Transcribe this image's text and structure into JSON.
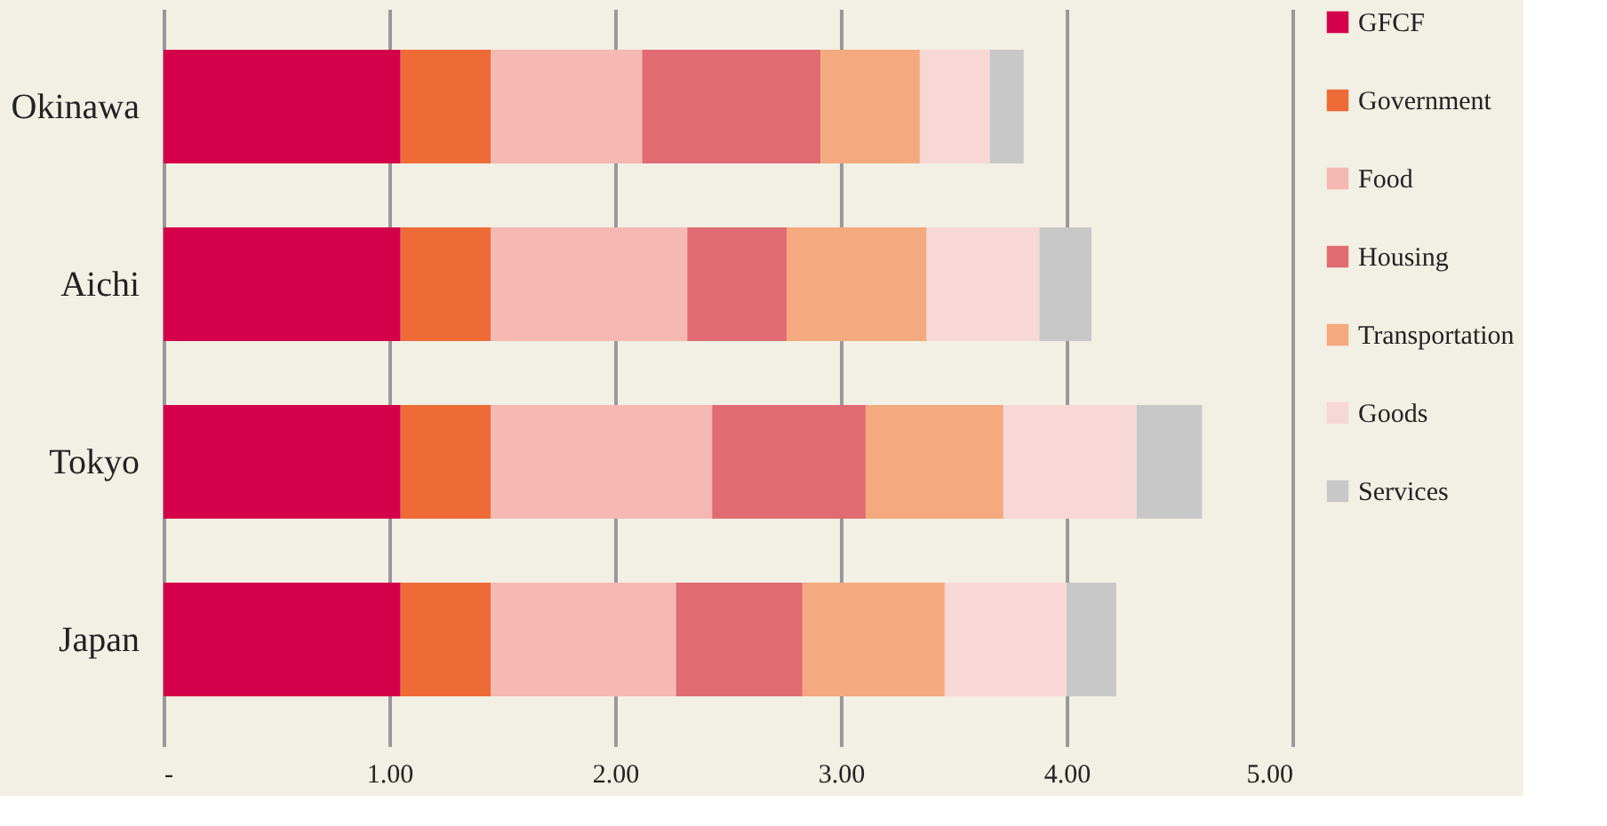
{
  "chart_data": {
    "type": "bar",
    "orientation": "horizontal",
    "stacked": true,
    "categories": [
      "Okinawa",
      "Aichi",
      "Tokyo",
      "Japan"
    ],
    "series": [
      {
        "name": "GFCF",
        "color": "#d5004a",
        "values": [
          1.05,
          1.05,
          1.05,
          1.05
        ]
      },
      {
        "name": "Government",
        "color": "#ee6b38",
        "values": [
          0.4,
          0.4,
          0.4,
          0.4
        ]
      },
      {
        "name": "Food",
        "color": "#f5b8b3",
        "values": [
          0.67,
          0.87,
          0.98,
          0.82
        ]
      },
      {
        "name": "Housing",
        "color": "#e06b72",
        "values": [
          0.79,
          0.44,
          0.68,
          0.56
        ]
      },
      {
        "name": "Transportation",
        "color": "#f4a97e",
        "values": [
          0.44,
          0.62,
          0.61,
          0.63
        ]
      },
      {
        "name": "Goods",
        "color": "#f8d8d6",
        "values": [
          0.31,
          0.5,
          0.59,
          0.54
        ]
      },
      {
        "name": "Services",
        "color": "#c8c8c8",
        "values": [
          0.15,
          0.23,
          0.29,
          0.22
        ]
      }
    ],
    "xlim": [
      0,
      5
    ],
    "xticks": [
      {
        "value": 0,
        "label": "-"
      },
      {
        "value": 1,
        "label": "1.00"
      },
      {
        "value": 2,
        "label": "2.00"
      },
      {
        "value": 3,
        "label": "3.00"
      },
      {
        "value": 4,
        "label": "4.00"
      },
      {
        "value": 5,
        "label": "5.00"
      }
    ],
    "grid": "x",
    "legend": "right"
  }
}
